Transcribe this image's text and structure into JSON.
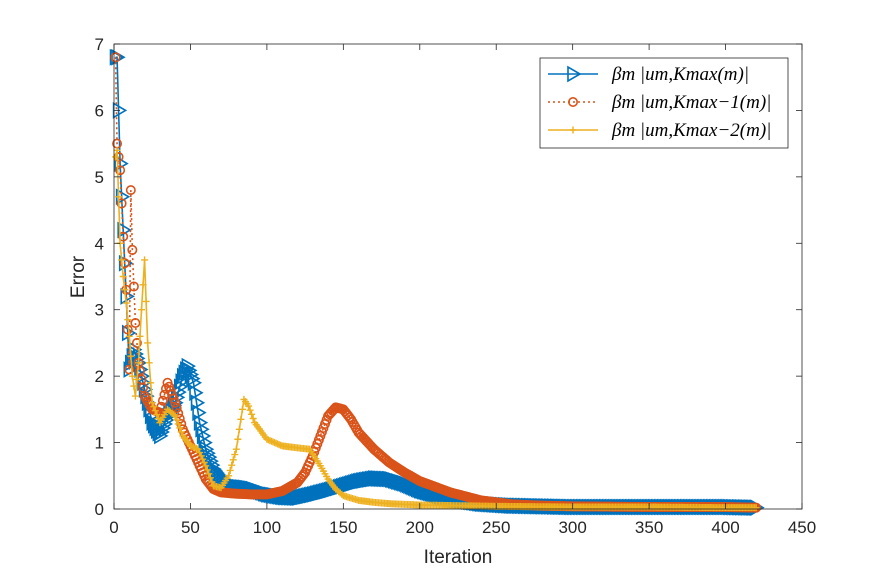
{
  "chart_data": {
    "type": "line",
    "title": "",
    "xlabel": "Iteration",
    "ylabel": "Error",
    "xlim": [
      0,
      450
    ],
    "ylim": [
      0,
      7
    ],
    "xticks": [
      "0",
      "50",
      "100",
      "150",
      "200",
      "250",
      "300",
      "350",
      "400",
      "450"
    ],
    "yticks": [
      "0",
      "1",
      "2",
      "3",
      "4",
      "5",
      "6",
      "7"
    ],
    "grid": false,
    "legend_position": "top-right",
    "series": [
      {
        "name": "βm |um,Kmax(m)|",
        "color": "#0072BD",
        "line_style": "solid",
        "marker": "triangle-right",
        "points": [
          [
            1,
            6.8
          ],
          [
            2,
            6.8
          ],
          [
            4,
            5.2
          ],
          [
            6,
            4.2
          ],
          [
            8,
            3.2
          ],
          [
            10,
            2.1
          ],
          [
            13,
            2.4
          ],
          [
            16,
            2.2
          ],
          [
            20,
            1.8
          ],
          [
            25,
            1.3
          ],
          [
            30,
            1.1
          ],
          [
            35,
            1.4
          ],
          [
            40,
            1.6
          ],
          [
            45,
            2.0
          ],
          [
            48,
            2.15
          ],
          [
            52,
            1.9
          ],
          [
            56,
            1.3
          ],
          [
            60,
            0.9
          ],
          [
            65,
            0.6
          ],
          [
            70,
            0.45
          ],
          [
            75,
            0.35
          ],
          [
            80,
            0.33
          ],
          [
            85,
            0.32
          ],
          [
            90,
            0.3
          ],
          [
            100,
            0.22
          ],
          [
            110,
            0.18
          ],
          [
            120,
            0.17
          ],
          [
            130,
            0.22
          ],
          [
            140,
            0.28
          ],
          [
            150,
            0.35
          ],
          [
            160,
            0.42
          ],
          [
            170,
            0.46
          ],
          [
            180,
            0.45
          ],
          [
            190,
            0.38
          ],
          [
            200,
            0.28
          ],
          [
            220,
            0.15
          ],
          [
            240,
            0.08
          ],
          [
            260,
            0.05
          ],
          [
            280,
            0.04
          ],
          [
            300,
            0.03
          ],
          [
            350,
            0.03
          ],
          [
            400,
            0.03
          ],
          [
            420,
            0.02
          ]
        ]
      },
      {
        "name": "βm |um,Kmax−1(m)|",
        "color": "#D95319",
        "line_style": "dotted",
        "marker": "circle",
        "points": [
          [
            1,
            6.8
          ],
          [
            2,
            5.5
          ],
          [
            4,
            5.1
          ],
          [
            6,
            4.1
          ],
          [
            8,
            3.3
          ],
          [
            10,
            2.1
          ],
          [
            11,
            4.8
          ],
          [
            12,
            3.9
          ],
          [
            14,
            2.8
          ],
          [
            16,
            2.2
          ],
          [
            20,
            1.7
          ],
          [
            25,
            1.5
          ],
          [
            30,
            1.45
          ],
          [
            35,
            1.9
          ],
          [
            40,
            1.6
          ],
          [
            45,
            1.2
          ],
          [
            50,
            0.95
          ],
          [
            55,
            0.7
          ],
          [
            60,
            0.45
          ],
          [
            65,
            0.3
          ],
          [
            70,
            0.25
          ],
          [
            80,
            0.23
          ],
          [
            90,
            0.22
          ],
          [
            100,
            0.22
          ],
          [
            110,
            0.27
          ],
          [
            120,
            0.4
          ],
          [
            125,
            0.55
          ],
          [
            130,
            0.8
          ],
          [
            135,
            1.1
          ],
          [
            140,
            1.4
          ],
          [
            145,
            1.53
          ],
          [
            150,
            1.5
          ],
          [
            155,
            1.35
          ],
          [
            160,
            1.15
          ],
          [
            170,
            0.9
          ],
          [
            180,
            0.7
          ],
          [
            190,
            0.55
          ],
          [
            200,
            0.42
          ],
          [
            220,
            0.25
          ],
          [
            240,
            0.13
          ],
          [
            260,
            0.07
          ],
          [
            280,
            0.05
          ],
          [
            300,
            0.04
          ],
          [
            350,
            0.03
          ],
          [
            400,
            0.03
          ],
          [
            420,
            0.02
          ]
        ]
      },
      {
        "name": "βm |um,Kmax−2(m)|",
        "color": "#EDB120",
        "line_style": "solid",
        "marker": "plus",
        "points": [
          [
            1,
            5.3
          ],
          [
            2,
            5.4
          ],
          [
            4,
            4.0
          ],
          [
            6,
            3.5
          ],
          [
            8,
            3.1
          ],
          [
            10,
            2.6
          ],
          [
            12,
            2.0
          ],
          [
            14,
            1.7
          ],
          [
            16,
            2.2
          ],
          [
            18,
            3.0
          ],
          [
            20,
            3.75
          ],
          [
            22,
            2.5
          ],
          [
            25,
            1.6
          ],
          [
            30,
            1.3
          ],
          [
            35,
            1.5
          ],
          [
            40,
            1.4
          ],
          [
            45,
            1.1
          ],
          [
            50,
            0.95
          ],
          [
            55,
            0.9
          ],
          [
            60,
            0.65
          ],
          [
            65,
            0.35
          ],
          [
            70,
            0.32
          ],
          [
            75,
            0.5
          ],
          [
            80,
            0.9
          ],
          [
            85,
            1.65
          ],
          [
            88,
            1.55
          ],
          [
            92,
            1.3
          ],
          [
            100,
            1.05
          ],
          [
            110,
            0.95
          ],
          [
            120,
            0.92
          ],
          [
            128,
            0.9
          ],
          [
            135,
            0.65
          ],
          [
            140,
            0.45
          ],
          [
            145,
            0.3
          ],
          [
            150,
            0.2
          ],
          [
            160,
            0.13
          ],
          [
            170,
            0.1
          ],
          [
            180,
            0.08
          ],
          [
            200,
            0.06
          ],
          [
            250,
            0.04
          ],
          [
            300,
            0.03
          ],
          [
            350,
            0.03
          ],
          [
            400,
            0.02
          ],
          [
            420,
            0.02
          ]
        ]
      }
    ]
  }
}
